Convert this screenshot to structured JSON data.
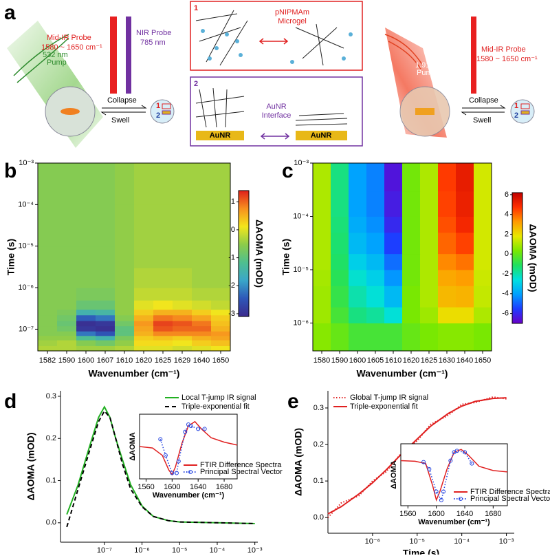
{
  "diagram": {
    "panel": "a",
    "left": {
      "pump": [
        "532 nm",
        "Pump"
      ],
      "probe1": [
        "Mid-IR Probe",
        "1580 ~ 1650 cm⁻¹"
      ],
      "probe2": [
        "NIR Probe",
        "785 nm"
      ],
      "collapse": "Collapse",
      "swell": "Swell",
      "marks": [
        "1",
        "2"
      ]
    },
    "box1": {
      "number": "1",
      "label": [
        "pNIPMAm",
        "Microgel"
      ]
    },
    "box2": {
      "number": "2",
      "label": [
        "AuNR",
        "Interface"
      ],
      "substrate": [
        "AuNR",
        "AuNR"
      ]
    },
    "right": {
      "pump": [
        "1.91 μm",
        "Pump"
      ],
      "probe": [
        "Mid-IR Probe",
        "1580 ~ 1650 cm⁻¹"
      ],
      "collapse": "Collapse",
      "swell": "Swell",
      "marks": [
        "1",
        "2"
      ]
    }
  },
  "chart_data": [
    {
      "type": "heatmap",
      "label": "b",
      "xlabel": "Wavenumber (cm⁻¹)",
      "ylabel": "Time (s)",
      "colorbar_label": "ΔAOMA (mOD)",
      "categories": [
        "1582",
        "1590",
        "1600",
        "1607",
        "1610",
        "1620",
        "1625",
        "1629",
        "1640",
        "1650"
      ],
      "y_bins": [
        3e-08,
        4e-08,
        5.5e-08,
        7e-08,
        9e-08,
        1.2e-07,
        1.6e-07,
        2.2e-07,
        3e-07,
        5e-07,
        1e-06,
        3e-06,
        1e-05,
        0.0001,
        0.001
      ],
      "log_y": true,
      "ylim": [
        3e-08,
        0.001
      ],
      "yticks": [
        {
          "value": 0.001,
          "label": "10⁻³"
        },
        {
          "value": 0.0001,
          "label": "10⁻⁴"
        },
        {
          "value": 1e-05,
          "label": "10⁻⁵"
        },
        {
          "value": 1e-06,
          "label": "10⁻⁶"
        },
        {
          "value": 1e-07,
          "label": "10⁻⁷"
        }
      ],
      "values": [
        [
          -0.3,
          -0.3,
          -0.4,
          -0.4,
          -0.3,
          0,
          0,
          -0.1,
          0,
          0.1
        ],
        [
          -0.4,
          -0.3,
          -0.6,
          -0.8,
          -0.5,
          0.2,
          0.2,
          0.1,
          0.3,
          0.4
        ],
        [
          -0.5,
          -0.5,
          -1.2,
          -1.5,
          -0.7,
          0.3,
          0.4,
          0.3,
          0.5,
          0.6
        ],
        [
          -0.6,
          -0.6,
          -2.2,
          -2.5,
          -1,
          0.5,
          0.8,
          0.8,
          0.8,
          0.7
        ],
        [
          -0.6,
          -0.8,
          -2.9,
          -3,
          -1,
          0.6,
          1.1,
          1,
          1,
          0.5
        ],
        [
          -0.6,
          -0.9,
          -3,
          -2.9,
          -0.8,
          0.7,
          1.2,
          1.1,
          0.9,
          0.4
        ],
        [
          -0.6,
          -0.8,
          -2.4,
          -2.2,
          -0.6,
          0.5,
          0.9,
          0.8,
          0.6,
          0.3
        ],
        [
          -0.6,
          -0.7,
          -1.5,
          -1.4,
          -0.5,
          0.3,
          0.5,
          0.5,
          0.3,
          0.1
        ],
        [
          -0.6,
          -0.6,
          -0.9,
          -0.9,
          -0.5,
          0,
          0.1,
          0,
          -0.1,
          -0.2
        ],
        [
          -0.6,
          -0.6,
          -0.7,
          -0.7,
          -0.5,
          -0.2,
          -0.2,
          -0.2,
          -0.3,
          -0.3
        ],
        [
          -0.6,
          -0.6,
          -0.6,
          -0.6,
          -0.5,
          -0.3,
          -0.3,
          -0.3,
          -0.4,
          -0.4
        ],
        [
          -0.6,
          -0.6,
          -0.6,
          -0.6,
          -0.5,
          -0.4,
          -0.4,
          -0.4,
          -0.4,
          -0.4
        ],
        [
          -0.6,
          -0.6,
          -0.6,
          -0.6,
          -0.5,
          -0.4,
          -0.4,
          -0.4,
          -0.4,
          -0.4
        ],
        [
          -0.6,
          -0.6,
          -0.6,
          -0.6,
          -0.5,
          -0.4,
          -0.4,
          -0.4,
          -0.4,
          -0.4
        ]
      ],
      "zlim": [
        -3.1,
        1.4
      ],
      "zticks": [
        1,
        0,
        -1,
        -2,
        -3
      ],
      "colors": [
        "#3b2a8c",
        "#2e57b8",
        "#3aa6c9",
        "#4fbf8f",
        "#8ccc4a",
        "#f3e61c",
        "#f7901e",
        "#e0201b"
      ]
    },
    {
      "type": "heatmap",
      "label": "c",
      "xlabel": "Wavenumber (cm⁻¹)",
      "ylabel": "Time (s)",
      "colorbar_label": "ΔAOMA (mOD)",
      "categories": [
        "1580",
        "1590",
        "1600",
        "1605",
        "1610",
        "1620",
        "1625",
        "1630",
        "1640",
        "1650"
      ],
      "y_bins": [
        3e-07,
        1e-06,
        2e-06,
        5e-06,
        1e-05,
        2e-05,
        5e-05,
        0.0001,
        0.0003,
        0.001
      ],
      "log_y": true,
      "ylim": [
        3e-07,
        0.001
      ],
      "yticks": [
        {
          "value": 0.001,
          "label": "10⁻³"
        },
        {
          "value": 0.0001,
          "label": "10⁻⁴"
        },
        {
          "value": 1e-05,
          "label": "10⁻⁵"
        },
        {
          "value": 1e-06,
          "label": "10⁻⁶"
        }
      ],
      "values": [
        [
          0.5,
          0,
          -0.5,
          -0.5,
          -0.5,
          0,
          0.3,
          0.5,
          0.5,
          0.3
        ],
        [
          0.8,
          -0.5,
          -1.5,
          -1.8,
          -2.5,
          0.3,
          0.8,
          2,
          2,
          1
        ],
        [
          0.8,
          -0.8,
          -2,
          -2.5,
          -3.5,
          0.3,
          1,
          2.7,
          2.8,
          1.3
        ],
        [
          0.9,
          -1,
          -2.4,
          -3,
          -4.2,
          0.2,
          1,
          3,
          3.2,
          1.4
        ],
        [
          1,
          -1.2,
          -3,
          -3.5,
          -4.8,
          0.2,
          1,
          3.5,
          3.8,
          1.5
        ],
        [
          1,
          -1.3,
          -3.5,
          -4,
          -5.5,
          0.2,
          1,
          4,
          4.5,
          1.5
        ],
        [
          1,
          -1.4,
          -3.8,
          -4.3,
          -6,
          0.2,
          1,
          4.3,
          5,
          1.5
        ],
        [
          1,
          -1.5,
          -4,
          -4.5,
          -6.3,
          0.2,
          1,
          4.5,
          5.2,
          1.5
        ],
        [
          1,
          -1.5,
          -4,
          -4.5,
          -6.5,
          0.2,
          1,
          4.6,
          5.3,
          1.5
        ]
      ],
      "zlim": [
        -7,
        6.2
      ],
      "zticks": [
        6,
        4,
        2,
        0,
        -2,
        -4,
        -6
      ],
      "colors": [
        "#6a00c8",
        "#1e3cff",
        "#00a0ff",
        "#00e0e0",
        "#20e060",
        "#7be800",
        "#e8e800",
        "#ff9a00",
        "#ff3000",
        "#c00000"
      ]
    },
    {
      "type": "line",
      "label": "d",
      "xlabel": "Time (s)",
      "ylabel": "ΔAOMA (mOD)",
      "log_x": true,
      "legend": "upper right",
      "x": [
        1e-08,
        2e-08,
        4e-08,
        7e-08,
        1e-07,
        1.4e-07,
        2e-07,
        3e-07,
        5e-07,
        1e-06,
        2e-06,
        5e-06,
        1e-05,
        0.0001,
        0.001
      ],
      "series": [
        {
          "name": "Local T-jump IR signal",
          "color": "#22b022",
          "line": "solid",
          "values": [
            0.02,
            0.09,
            0.18,
            0.25,
            0.275,
            0.25,
            0.2,
            0.15,
            0.09,
            0.04,
            0.015,
            0.005,
            0.002,
            0,
            -0.002
          ]
        },
        {
          "name": "Triple-exponential fit",
          "color": "#000000",
          "line": "dashed",
          "values": [
            -0.01,
            0.08,
            0.17,
            0.24,
            0.265,
            0.25,
            0.2,
            0.14,
            0.08,
            0.038,
            0.015,
            0.005,
            0.002,
            0,
            -0.002
          ]
        }
      ],
      "xlim": [
        6.8e-09,
        0.0012
      ],
      "ylim": [
        -0.046,
        0.313
      ],
      "xticks": [
        {
          "value": 1e-07,
          "label": "10⁻⁷"
        },
        {
          "value": 1e-06,
          "label": "10⁻⁶"
        },
        {
          "value": 1e-05,
          "label": "10⁻⁵"
        },
        {
          "value": 0.0001,
          "label": "10⁻⁴"
        },
        {
          "value": 0.001,
          "label": "10⁻³"
        }
      ],
      "yticks": [
        {
          "value": 0,
          "label": "0.0"
        },
        0.1,
        0.2,
        0.3
      ],
      "inset": {
        "xlabel": "Wavenumber (cm⁻¹)",
        "ylabel": "ΔAOMA",
        "legend": "lower right",
        "xlim": [
          1550,
          1700
        ],
        "ylim": [
          -1.1,
          1.1
        ],
        "xticks": [
          1560,
          1600,
          1640,
          1680
        ],
        "series": [
          {
            "name": "FTIR Difference Spectra",
            "color": "#e02020",
            "line": "solid",
            "x": [
              1550,
              1570,
              1585,
              1595,
              1600,
              1605,
              1615,
              1625,
              1635,
              1645,
              1660,
              1680,
              1700
            ],
            "values": [
              0,
              -0.05,
              -0.3,
              -0.8,
              -0.95,
              -0.7,
              0.1,
              0.7,
              0.85,
              0.6,
              0.3,
              0.15,
              0.05
            ]
          },
          {
            "name": "Principal Spectral Vector",
            "color": "#2040e0",
            "line": "dotted",
            "marker": "circle",
            "x": [
              1582,
              1590,
              1600,
              1607,
              1610,
              1620,
              1625,
              1629,
              1640,
              1650
            ],
            "values": [
              0.25,
              -0.3,
              -0.9,
              -0.9,
              -0.5,
              0.5,
              0.75,
              0.7,
              0.6,
              0.6
            ]
          }
        ]
      }
    },
    {
      "type": "line",
      "label": "e",
      "xlabel": "Time (s)",
      "ylabel": "ΔAOMA (mOD)",
      "log_x": true,
      "legend": "upper left",
      "x": [
        1e-07,
        2e-07,
        5e-07,
        1e-06,
        2e-06,
        5e-06,
        1e-05,
        2e-05,
        5e-05,
        0.0001,
        0.0002,
        0.0005,
        0.001
      ],
      "series": [
        {
          "name": "Global T-jump IR signal",
          "color": "#e02020",
          "line": "dotted",
          "values": [
            0,
            0.04,
            0.06,
            0.1,
            0.125,
            0.185,
            0.21,
            0.255,
            0.28,
            0.31,
            0.315,
            0.33,
            0.325
          ]
        },
        {
          "name": "Triple-exponential fit",
          "color": "#e02020",
          "line": "solid",
          "values": [
            0.01,
            0.03,
            0.065,
            0.095,
            0.13,
            0.18,
            0.215,
            0.25,
            0.285,
            0.305,
            0.318,
            0.326,
            0.328
          ]
        }
      ],
      "xlim": [
        1e-07,
        0.0015
      ],
      "ylim": [
        -0.043,
        0.347
      ],
      "xticks": [
        {
          "value": 1e-06,
          "label": "10⁻⁶"
        },
        {
          "value": 1e-05,
          "label": "10⁻⁵"
        },
        {
          "value": 0.0001,
          "label": "10⁻⁴"
        },
        {
          "value": 0.001,
          "label": "10⁻³"
        }
      ],
      "yticks": [
        {
          "value": 0,
          "label": "0.0"
        },
        0.1,
        0.2,
        0.3
      ],
      "inset": {
        "xlabel": "Wavenumber (cm⁻¹)",
        "ylabel": "ΔAOMA",
        "legend": "lower right",
        "xlim": [
          1550,
          1700
        ],
        "ylim": [
          -1.1,
          1.1
        ],
        "xticks": [
          1560,
          1600,
          1640,
          1680
        ],
        "series": [
          {
            "name": "FTIR Difference Spectra",
            "color": "#e02020",
            "line": "solid",
            "x": [
              1550,
              1570,
              1585,
              1595,
              1600,
              1605,
              1615,
              1625,
              1635,
              1645,
              1660,
              1680,
              1700
            ],
            "values": [
              0.5,
              0.48,
              0.4,
              -0.4,
              -0.9,
              -0.6,
              0.2,
              0.8,
              0.9,
              0.7,
              0.3,
              0.15,
              0.1
            ]
          },
          {
            "name": "Principal Spectral Vector",
            "color": "#2040e0",
            "line": "dotted",
            "marker": "circle",
            "x": [
              1582,
              1590,
              1600,
              1607,
              1610,
              1620,
              1625,
              1629,
              1640,
              1650
            ],
            "values": [
              0.45,
              0.2,
              -0.6,
              -0.9,
              -0.6,
              0.5,
              0.8,
              0.85,
              0.8,
              0.4
            ]
          }
        ]
      }
    }
  ]
}
